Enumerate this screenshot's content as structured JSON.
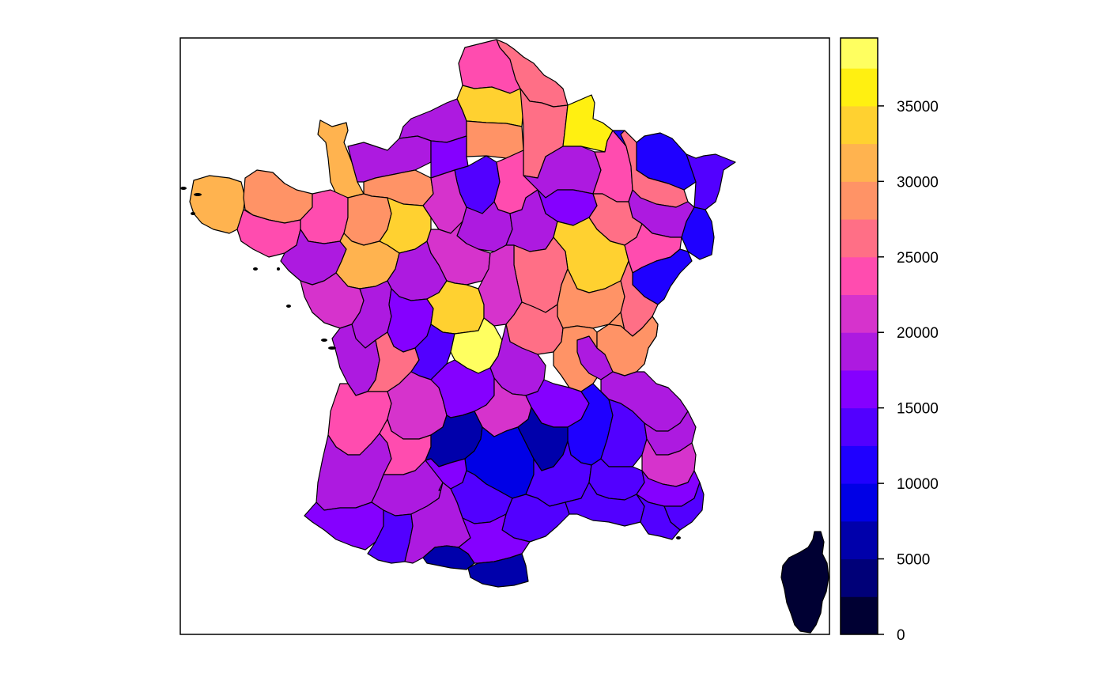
{
  "chart_data": {
    "type": "choropleth",
    "legend_placement": "right",
    "scale": {
      "min": 0,
      "max": 39500,
      "step": 2500,
      "bins": [
        {
          "from": 0,
          "to": 2500,
          "color": "#000033"
        },
        {
          "from": 2500,
          "to": 5000,
          "color": "#000078"
        },
        {
          "from": 5000,
          "to": 7500,
          "color": "#0000AB"
        },
        {
          "from": 7500,
          "to": 10000,
          "color": "#0000E6"
        },
        {
          "from": 10000,
          "to": 12500,
          "color": "#1F00FF"
        },
        {
          "from": 12500,
          "to": 15000,
          "color": "#5200FF"
        },
        {
          "from": 15000,
          "to": 17500,
          "color": "#8500FF"
        },
        {
          "from": 17500,
          "to": 20000,
          "color": "#AD1AE0"
        },
        {
          "from": 20000,
          "to": 22500,
          "color": "#D633CC"
        },
        {
          "from": 22500,
          "to": 25000,
          "color": "#FF4CAF"
        },
        {
          "from": 25000,
          "to": 27500,
          "color": "#FF6F86"
        },
        {
          "from": 27500,
          "to": 30000,
          "color": "#FF9366"
        },
        {
          "from": 30000,
          "to": 32500,
          "color": "#FFB34F"
        },
        {
          "from": 32500,
          "to": 35000,
          "color": "#FFD130"
        },
        {
          "from": 35000,
          "to": 37500,
          "color": "#FFF011"
        },
        {
          "from": 37500,
          "to": 39500,
          "color": "#FFFF60"
        }
      ],
      "ticks": [
        {
          "value": 0,
          "label": "0"
        },
        {
          "value": 5000,
          "label": "5000"
        },
        {
          "value": 10000,
          "label": "10000"
        },
        {
          "value": 15000,
          "label": "15000"
        },
        {
          "value": 20000,
          "label": "20000"
        },
        {
          "value": 25000,
          "label": "25000"
        },
        {
          "value": 30000,
          "label": "30000"
        },
        {
          "value": 35000,
          "label": "35000"
        }
      ]
    },
    "regions": [
      {
        "id": "pas-de-calais",
        "value": 24000
      },
      {
        "id": "nord",
        "value": 26000
      },
      {
        "id": "somme",
        "value": 33500
      },
      {
        "id": "aisne",
        "value": 26000
      },
      {
        "id": "ardennes",
        "value": 37000
      },
      {
        "id": "seine-maritime",
        "value": 19000
      },
      {
        "id": "oise",
        "value": 28500
      },
      {
        "id": "marne",
        "value": 17500
      },
      {
        "id": "meuse",
        "value": 24000
      },
      {
        "id": "moselle",
        "value": 11500
      },
      {
        "id": "bas-rhin",
        "value": 13000
      },
      {
        "id": "meurthe-et-moselle",
        "value": 26000
      },
      {
        "id": "haut-rhin",
        "value": 11000
      },
      {
        "id": "vosges",
        "value": 19000
      },
      {
        "id": "manche",
        "value": 31500
      },
      {
        "id": "calvados",
        "value": 19000
      },
      {
        "id": "eure",
        "value": 16500
      },
      {
        "id": "ile-de-france",
        "value": 13500
      },
      {
        "id": "seine-et-marne",
        "value": 23000
      },
      {
        "id": "aube",
        "value": 17000
      },
      {
        "id": "haute-marne",
        "value": 26000
      },
      {
        "id": "finistere",
        "value": 31000
      },
      {
        "id": "cotes-d-armor",
        "value": 28500
      },
      {
        "id": "ille-et-vilaine",
        "value": 23500
      },
      {
        "id": "orne",
        "value": 29000
      },
      {
        "id": "eure-et-loir",
        "value": 20000
      },
      {
        "id": "morbihan",
        "value": 24000
      },
      {
        "id": "mayenne",
        "value": 28500
      },
      {
        "id": "sarthe",
        "value": 33500
      },
      {
        "id": "loiret",
        "value": 18500
      },
      {
        "id": "yonne",
        "value": 18000
      },
      {
        "id": "cote-d-or",
        "value": 33000
      },
      {
        "id": "haute-saone",
        "value": 24000
      },
      {
        "id": "doubs",
        "value": 11000
      },
      {
        "id": "loire-atlantique",
        "value": 18500
      },
      {
        "id": "maine-et-loire",
        "value": 31000
      },
      {
        "id": "indre-et-loire",
        "value": 18000
      },
      {
        "id": "loir-et-cher",
        "value": 21000
      },
      {
        "id": "nievre",
        "value": 26000
      },
      {
        "id": "saone-et-loire",
        "value": 28000
      },
      {
        "id": "jura",
        "value": 26000
      },
      {
        "id": "vendee",
        "value": 21500
      },
      {
        "id": "deux-sevres",
        "value": 18500
      },
      {
        "id": "vienne",
        "value": 16000
      },
      {
        "id": "indre",
        "value": 33000
      },
      {
        "id": "cher",
        "value": 21000
      },
      {
        "id": "allier",
        "value": 26000
      },
      {
        "id": "ain",
        "value": 28500
      },
      {
        "id": "charente-maritime",
        "value": 18500
      },
      {
        "id": "charente",
        "value": 26000
      },
      {
        "id": "haute-vienne",
        "value": 12500
      },
      {
        "id": "creuse",
        "value": 39000
      },
      {
        "id": "puy-de-dome",
        "value": 19000
      },
      {
        "id": "loire",
        "value": 28000
      },
      {
        "id": "rhone",
        "value": 18000
      },
      {
        "id": "haute-savoie",
        "value": 28500
      },
      {
        "id": "savoie",
        "value": 19000
      },
      {
        "id": "gironde",
        "value": 23500
      },
      {
        "id": "dordogne",
        "value": 21000
      },
      {
        "id": "correze",
        "value": 15000
      },
      {
        "id": "cantal",
        "value": 21000
      },
      {
        "id": "haute-loire",
        "value": 15500
      },
      {
        "id": "ardeche",
        "value": 11500
      },
      {
        "id": "drome",
        "value": 14500
      },
      {
        "id": "isere",
        "value": 19000
      },
      {
        "id": "hautes-alpes",
        "value": 20500
      },
      {
        "id": "landes",
        "value": 19000
      },
      {
        "id": "lot-et-garonne",
        "value": 23500
      },
      {
        "id": "lot",
        "value": 6000
      },
      {
        "id": "aveyron",
        "value": 8500
      },
      {
        "id": "lozere",
        "value": 7000
      },
      {
        "id": "gard",
        "value": 13500
      },
      {
        "id": "vaucluse",
        "value": 14500
      },
      {
        "id": "alpes-de-haute-provence",
        "value": 15000
      },
      {
        "id": "alpes-maritimes",
        "value": 14000
      },
      {
        "id": "gers",
        "value": 19000
      },
      {
        "id": "tarn-et-garonne",
        "value": 16000
      },
      {
        "id": "tarn",
        "value": 13500
      },
      {
        "id": "herault",
        "value": 13000
      },
      {
        "id": "bouches-du-rhone",
        "value": 13500
      },
      {
        "id": "var",
        "value": 14000
      },
      {
        "id": "pyrenees-atlantiques",
        "value": 16500
      },
      {
        "id": "hautes-pyrenees",
        "value": 12500
      },
      {
        "id": "haute-garonne",
        "value": 19500
      },
      {
        "id": "ariege",
        "value": 6000
      },
      {
        "id": "aude",
        "value": 15000
      },
      {
        "id": "pyrenees-orientales",
        "value": 6500
      },
      {
        "id": "corse",
        "value": 1000
      }
    ]
  }
}
